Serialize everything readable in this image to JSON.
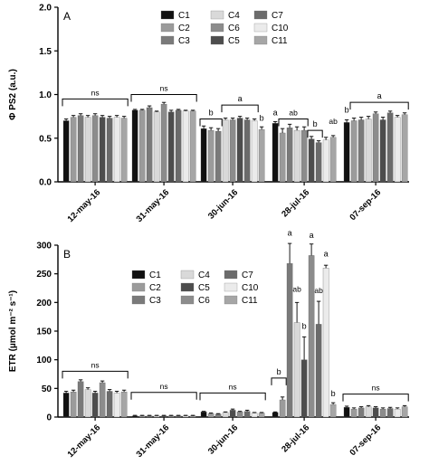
{
  "chart_data": [
    {
      "type": "bar",
      "panel_label": "A",
      "ylabel": "Φ PS2 (a.u.)",
      "ylim": [
        0,
        2.0
      ],
      "yticks": [
        "0.0",
        "0.5",
        "1.0",
        "1.5",
        "2.0"
      ],
      "categories": [
        "12-may-16",
        "31-may-16",
        "30-jun-16",
        "28-jul-16",
        "07-sep-16"
      ],
      "legend_columns": [
        [
          "C1",
          "C2",
          "C3"
        ],
        [
          "C4",
          "C6",
          "C5"
        ],
        [
          "C7",
          "C10",
          "C11"
        ]
      ],
      "series": [
        {
          "name": "C1",
          "color": "#111111",
          "values": [
            0.7,
            0.82,
            0.61,
            0.67,
            0.68
          ],
          "errors": [
            0.02,
            0.01,
            0.03,
            0.02,
            0.03
          ]
        },
        {
          "name": "C2",
          "color": "#9b9b9b",
          "values": [
            0.74,
            0.82,
            0.59,
            0.56,
            0.7
          ],
          "errors": [
            0.02,
            0.01,
            0.03,
            0.05,
            0.03
          ]
        },
        {
          "name": "C3",
          "color": "#7a7a7a",
          "values": [
            0.76,
            0.85,
            0.58,
            0.62,
            0.71
          ],
          "errors": [
            0.02,
            0.02,
            0.03,
            0.04,
            0.03
          ]
        },
        {
          "name": "C4",
          "color": "#d9d9d9",
          "values": [
            0.74,
            0.8,
            0.71,
            0.59,
            0.72
          ],
          "errors": [
            0.02,
            0.01,
            0.02,
            0.04,
            0.03
          ]
        },
        {
          "name": "C6",
          "color": "#8c8c8c",
          "values": [
            0.76,
            0.89,
            0.71,
            0.59,
            0.78
          ],
          "errors": [
            0.02,
            0.02,
            0.02,
            0.04,
            0.02
          ]
        },
        {
          "name": "C5",
          "color": "#4d4d4d",
          "values": [
            0.74,
            0.8,
            0.73,
            0.49,
            0.71
          ],
          "errors": [
            0.02,
            0.02,
            0.02,
            0.03,
            0.03
          ]
        },
        {
          "name": "C7",
          "color": "#6b6b6b",
          "values": [
            0.73,
            0.82,
            0.71,
            0.45,
            0.79
          ],
          "errors": [
            0.02,
            0.01,
            0.02,
            0.02,
            0.02
          ]
        },
        {
          "name": "C10",
          "color": "#ebebeb",
          "values": [
            0.74,
            0.81,
            0.7,
            0.48,
            0.74
          ],
          "errors": [
            0.02,
            0.01,
            0.02,
            0.03,
            0.02
          ]
        },
        {
          "name": "C11",
          "color": "#a6a6a6",
          "values": [
            0.73,
            0.81,
            0.6,
            0.51,
            0.77
          ],
          "errors": [
            0.02,
            0.01,
            0.03,
            0.02,
            0.02
          ]
        }
      ],
      "annotations": [
        {
          "text": "ns",
          "group": 0,
          "bracket": [
            0,
            8
          ],
          "y": 0.95
        },
        {
          "text": "ns",
          "group": 1,
          "bracket": [
            0,
            8
          ],
          "y": 1.0
        },
        {
          "text": "b",
          "group": 2,
          "bracket": [
            0,
            2
          ],
          "y": 0.72
        },
        {
          "text": "a",
          "group": 2,
          "bracket": [
            3,
            7
          ],
          "y": 0.88
        },
        {
          "text": "b",
          "group": 2,
          "bar": 8,
          "y": 0.66
        },
        {
          "text": "a",
          "group": 3,
          "bar": 0,
          "y": 0.72
        },
        {
          "text": "ab",
          "group": 3,
          "bracket": [
            1,
            4
          ],
          "y": 0.72
        },
        {
          "text": "b",
          "group": 3,
          "bracket": [
            5,
            6
          ],
          "y": 0.59
        },
        {
          "text": "ab",
          "group": 3,
          "bar": 8,
          "y": 0.62
        },
        {
          "text": "b",
          "group": 4,
          "bar": 0,
          "y": 0.75
        },
        {
          "text": "a",
          "group": 4,
          "bracket": [
            1,
            8
          ],
          "y": 0.91
        }
      ]
    },
    {
      "type": "bar",
      "panel_label": "B",
      "ylabel": "ETR (µmol m⁻² s⁻¹)",
      "ylim": [
        0,
        300
      ],
      "yticks": [
        "0",
        "50",
        "100",
        "150",
        "200",
        "250",
        "300"
      ],
      "categories": [
        "12-may-16",
        "31-may-16",
        "30-jun-16",
        "28-jul-16",
        "07-sep-16"
      ],
      "legend_columns": [
        [
          "C1",
          "C2",
          "C3"
        ],
        [
          "C4",
          "C5",
          "C6"
        ],
        [
          "C7",
          "C10",
          "C11"
        ]
      ],
      "series": [
        {
          "name": "C1",
          "color": "#111111",
          "values": [
            42,
            2,
            9,
            8,
            17
          ],
          "errors": [
            3,
            1,
            1,
            1,
            2
          ]
        },
        {
          "name": "C2",
          "color": "#9b9b9b",
          "values": [
            44,
            2,
            6,
            30,
            14
          ],
          "errors": [
            3,
            1,
            1,
            5,
            2
          ]
        },
        {
          "name": "C3",
          "color": "#7a7a7a",
          "values": [
            62,
            2,
            5,
            268,
            16
          ],
          "errors": [
            3,
            1,
            1,
            35,
            2
          ]
        },
        {
          "name": "C4",
          "color": "#d9d9d9",
          "values": [
            48,
            2,
            8,
            165,
            18
          ],
          "errors": [
            3,
            1,
            1,
            35,
            2
          ]
        },
        {
          "name": "C5",
          "color": "#4d4d4d",
          "values": [
            42,
            2,
            12,
            100,
            16
          ],
          "errors": [
            3,
            1,
            2,
            40,
            2
          ]
        },
        {
          "name": "C6",
          "color": "#8c8c8c",
          "values": [
            60,
            2,
            9,
            282,
            14
          ],
          "errors": [
            3,
            1,
            1,
            20,
            2
          ]
        },
        {
          "name": "C7",
          "color": "#6b6b6b",
          "values": [
            45,
            2,
            10,
            162,
            15
          ],
          "errors": [
            3,
            1,
            2,
            40,
            2
          ]
        },
        {
          "name": "C10",
          "color": "#ebebeb",
          "values": [
            42,
            2,
            7,
            260,
            14
          ],
          "errors": [
            3,
            1,
            1,
            5,
            2
          ]
        },
        {
          "name": "C11",
          "color": "#a6a6a6",
          "values": [
            44,
            2,
            7,
            22,
            18
          ],
          "errors": [
            3,
            1,
            1,
            3,
            2
          ]
        }
      ],
      "annotations": [
        {
          "text": "ns",
          "group": 0,
          "bracket": [
            0,
            8
          ],
          "y": 80
        },
        {
          "text": "ns",
          "group": 1,
          "bracket": [
            0,
            8
          ],
          "y": 43
        },
        {
          "text": "ns",
          "group": 2,
          "bracket": [
            0,
            8
          ],
          "y": 42
        },
        {
          "text": "b",
          "group": 3,
          "bracket": [
            0,
            1
          ],
          "y": 68
        },
        {
          "text": "a",
          "group": 3,
          "bar": 2,
          "y": 310
        },
        {
          "text": "ab",
          "group": 3,
          "bar": 3,
          "y": 212
        },
        {
          "text": "b",
          "group": 3,
          "bar": 4,
          "y": 148
        },
        {
          "text": "a",
          "group": 3,
          "bar": 5,
          "y": 306
        },
        {
          "text": "ab",
          "group": 3,
          "bar": 6,
          "y": 210
        },
        {
          "text": "a",
          "group": 3,
          "bar": 7,
          "y": 274
        },
        {
          "text": "b",
          "group": 3,
          "bar": 8,
          "y": 30
        },
        {
          "text": "ns",
          "group": 4,
          "bracket": [
            0,
            8
          ],
          "y": 40
        }
      ]
    }
  ]
}
